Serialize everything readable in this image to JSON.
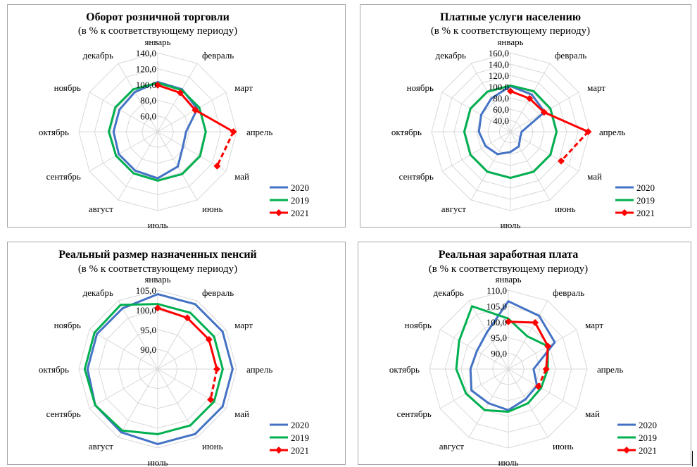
{
  "chart_data": [
    {
      "type": "radar",
      "title": "Оборот розничной торговли",
      "subtitle": "(в % к соответствующему периоду)",
      "categories": [
        "январь",
        "февраль",
        "март",
        "апрель",
        "май",
        "июнь",
        "июль",
        "август",
        "сентябрь",
        "октябрь",
        "ноябрь",
        "декабрь"
      ],
      "range": [
        40,
        140
      ],
      "ticks": [
        60,
        80,
        100,
        120,
        140
      ],
      "tick_labels": [
        "60,0",
        "80,0",
        "100,0",
        "120,0",
        "140,0"
      ],
      "grid": true,
      "legend_position": "bottom-right",
      "series": [
        {
          "name": "2020",
          "color": "#4472c4",
          "dashed_from": null,
          "values": [
            103,
            102,
            98,
            76,
            77,
            91,
            99,
            97,
            97,
            96,
            96,
            98
          ]
        },
        {
          "name": "2019",
          "color": "#00b050",
          "dashed_from": null,
          "values": [
            102,
            101,
            101,
            101,
            102,
            102,
            102,
            101,
            101,
            102,
            102,
            102
          ]
        },
        {
          "name": "2021",
          "color": "#ff0000",
          "dashed_from": 3,
          "values": [
            99,
            97,
            95,
            136,
            127,
            null,
            null,
            null,
            null,
            null,
            null,
            null
          ]
        }
      ]
    },
    {
      "type": "radar",
      "title": "Платные услуги населению",
      "subtitle": "(в % к соответствующему периоду)",
      "categories": [
        "январь",
        "февраль",
        "март",
        "апрель",
        "май",
        "июнь",
        "июль",
        "август",
        "сентябрь",
        "октябрь",
        "ноябрь",
        "декабрь"
      ],
      "range": [
        20,
        160
      ],
      "ticks": [
        40,
        60,
        80,
        100,
        120,
        140,
        160
      ],
      "tick_labels": [
        "40,0",
        "60,0",
        "80,0",
        "100,0",
        "120,0",
        "140,0",
        "160,0"
      ],
      "grid": true,
      "legend_position": "bottom-right",
      "series": [
        {
          "name": "2020",
          "color": "#4472c4",
          "dashed_from": null,
          "values": [
            101,
            96,
            90,
            40,
            40,
            50,
            56,
            66,
            71,
            76,
            80,
            88
          ]
        },
        {
          "name": "2019",
          "color": "#00b050",
          "dashed_from": null,
          "values": [
            102,
            103,
            102,
            102,
            102,
            102,
            102,
            102,
            102,
            102,
            102,
            102
          ]
        },
        {
          "name": "2021",
          "color": "#ff0000",
          "dashed_from": 3,
          "values": [
            92,
            88,
            89,
            158,
            124,
            null,
            null,
            null,
            null,
            null,
            null,
            null
          ]
        }
      ]
    },
    {
      "type": "radar",
      "title": "Реальный размер назначенных пенсий",
      "subtitle": "(в % к соответствующему периоду)",
      "categories": [
        "январь",
        "февраль",
        "март",
        "апрель",
        "май",
        "июнь",
        "июль",
        "август",
        "сентябрь",
        "октябрь",
        "ноябрь",
        "декабрь"
      ],
      "range": [
        85,
        105
      ],
      "ticks": [
        90,
        95,
        100,
        105
      ],
      "tick_labels": [
        "90,0",
        "95,0",
        "100,0",
        "105,0"
      ],
      "grid": true,
      "legend_position": "bottom-right",
      "series": [
        {
          "name": "2020",
          "color": "#4472c4",
          "dashed_from": null,
          "values": [
            104.0,
            104.0,
            104.0,
            104.0,
            104.0,
            104.0,
            104.0,
            103.5,
            103.3,
            102.8,
            102.8,
            102.8
          ]
        },
        {
          "name": "2019",
          "color": "#00b050",
          "dashed_from": null,
          "values": [
            101.5,
            101.5,
            101.5,
            101.5,
            101.5,
            101.5,
            101.5,
            103.0,
            103.3,
            103.5,
            103.5,
            103.8
          ]
        },
        {
          "name": "2021",
          "color": "#ff0000",
          "dashed_from": 3,
          "values": [
            100.5,
            100.0,
            100.0,
            100.0,
            100.5,
            null,
            null,
            null,
            null,
            null,
            null,
            null
          ]
        }
      ]
    },
    {
      "type": "radar",
      "title": "Реальная заработная плата",
      "subtitle": "(в % к соответствующему периоду)",
      "categories": [
        "январь",
        "февраль",
        "март",
        "апрель",
        "май",
        "июнь",
        "июль",
        "август",
        "сентябрь",
        "октябрь",
        "ноябрь",
        "декабрь"
      ],
      "range": [
        85,
        110
      ],
      "ticks": [
        90,
        95,
        100,
        105,
        110
      ],
      "tick_labels": [
        "90,0",
        "95,0",
        "100,0",
        "105,0",
        "110,0"
      ],
      "grid": true,
      "legend_position": "bottom-right",
      "series": [
        {
          "name": "2020",
          "color": "#4472c4",
          "dashed_from": null,
          "values": [
            106.5,
            104.5,
            102.0,
            93.0,
            95.5,
            96.0,
            98.0,
            97.5,
            98.5,
            97.0,
            96.5,
            98.5
          ]
        },
        {
          "name": "2019",
          "color": "#00b050",
          "dashed_from": null,
          "values": [
            101.0,
            97.0,
            99.5,
            97.5,
            97.0,
            97.5,
            98.5,
            100.0,
            100.5,
            101.5,
            103.0,
            108.0
          ]
        },
        {
          "name": "2021",
          "color": "#ff0000",
          "dashed_from": 3,
          "values": [
            100.0,
            102.0,
            99.5,
            97.0,
            96.0,
            null,
            null,
            null,
            null,
            null,
            null,
            null
          ]
        }
      ]
    }
  ]
}
